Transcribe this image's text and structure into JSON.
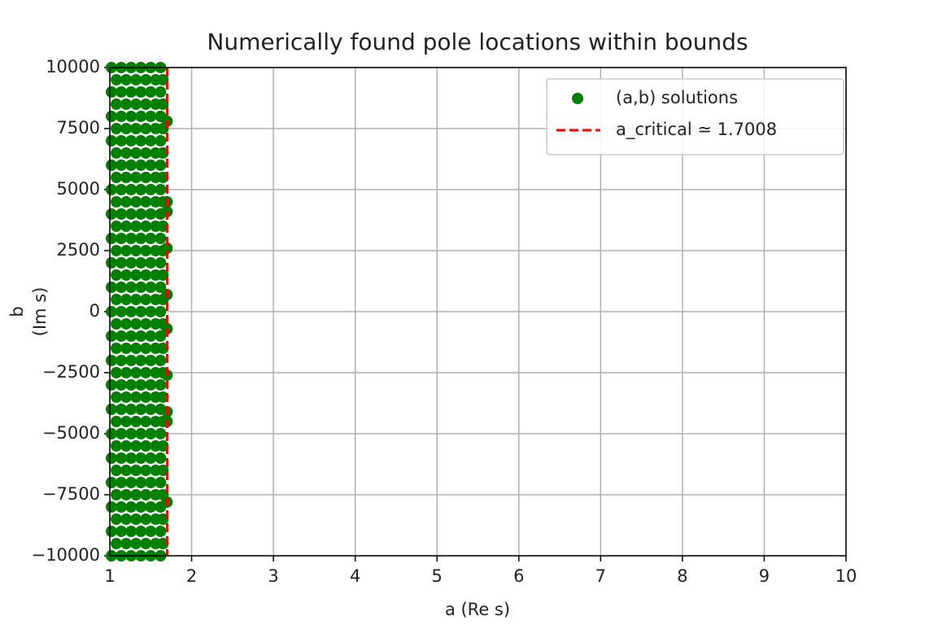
{
  "chart_data": {
    "type": "scatter",
    "title": "Numerically found pole locations within bounds",
    "xlabel": "a (Re s)",
    "ylabel": [
      "b",
      "(Im s)"
    ],
    "xlim": [
      1,
      10
    ],
    "xticks": [
      1,
      2,
      3,
      4,
      5,
      6,
      7,
      8,
      9,
      10
    ],
    "ylim": [
      -10000,
      10000
    ],
    "yticks": [
      {
        "value": -10000,
        "label": "−10000"
      },
      {
        "value": -7500,
        "label": "−7500"
      },
      {
        "value": -5000,
        "label": "−5000"
      },
      {
        "value": -2500,
        "label": "−2500"
      },
      0,
      2500,
      5000,
      7500,
      10000
    ],
    "grid": true,
    "legend": "upper right",
    "series": [
      {
        "name": "(a,b) solutions",
        "color": "#008000",
        "x": [
          1.02,
          1.14,
          1.26,
          1.38,
          1.5,
          1.62,
          1.08,
          1.2,
          1.32,
          1.44,
          1.56,
          1.65,
          1.02,
          1.14,
          1.26,
          1.38,
          1.5,
          1.62,
          1.08,
          1.2,
          1.32,
          1.44,
          1.56,
          1.65,
          1.02,
          1.14,
          1.26,
          1.38,
          1.5,
          1.62,
          1.08,
          1.2,
          1.32,
          1.44,
          1.56,
          1.65,
          1.02,
          1.14,
          1.26,
          1.38,
          1.5,
          1.62,
          1.08,
          1.2,
          1.32,
          1.44,
          1.56,
          1.65,
          1.02,
          1.14,
          1.26,
          1.38,
          1.5,
          1.62,
          1.08,
          1.2,
          1.32,
          1.44,
          1.56,
          1.65,
          1.02,
          1.14,
          1.26,
          1.38,
          1.5,
          1.62,
          1.08,
          1.2,
          1.32,
          1.44,
          1.56,
          1.65,
          1.02,
          1.14,
          1.26,
          1.38,
          1.5,
          1.62,
          1.08,
          1.2,
          1.32,
          1.44,
          1.56,
          1.65,
          1.02,
          1.14,
          1.26,
          1.38,
          1.5,
          1.62,
          1.08,
          1.2,
          1.32,
          1.44,
          1.56,
          1.65,
          1.02,
          1.14,
          1.26,
          1.38,
          1.5,
          1.62,
          1.08,
          1.2,
          1.32,
          1.44,
          1.56,
          1.65,
          1.02,
          1.14,
          1.26,
          1.38,
          1.5,
          1.62,
          1.08,
          1.2,
          1.32,
          1.44,
          1.56,
          1.65,
          1.02,
          1.14,
          1.26,
          1.38,
          1.5,
          1.62,
          1.08,
          1.2,
          1.32,
          1.44,
          1.56,
          1.65,
          1.02,
          1.14,
          1.26,
          1.38,
          1.5,
          1.62,
          1.08,
          1.2,
          1.32,
          1.44,
          1.56,
          1.65,
          1.02,
          1.14,
          1.26,
          1.38,
          1.5,
          1.62,
          1.08,
          1.2,
          1.32,
          1.44,
          1.56,
          1.65,
          1.02,
          1.14,
          1.26,
          1.38,
          1.5,
          1.62,
          1.08,
          1.2,
          1.32,
          1.44,
          1.56,
          1.65,
          1.02,
          1.14,
          1.26,
          1.38,
          1.5,
          1.62,
          1.08,
          1.2,
          1.32,
          1.44,
          1.56,
          1.65,
          1.02,
          1.14,
          1.26,
          1.38,
          1.5,
          1.62,
          1.08,
          1.2,
          1.32,
          1.44,
          1.56,
          1.65,
          1.02,
          1.14,
          1.26,
          1.38,
          1.5,
          1.62,
          1.08,
          1.2,
          1.32,
          1.44,
          1.56,
          1.65,
          1.02,
          1.14,
          1.26,
          1.38,
          1.5,
          1.62,
          1.08,
          1.2,
          1.32,
          1.44,
          1.56,
          1.65,
          1.02,
          1.14,
          1.26,
          1.38,
          1.5,
          1.62,
          1.08,
          1.2,
          1.32,
          1.44,
          1.56,
          1.65,
          1.02,
          1.14,
          1.26,
          1.38,
          1.5,
          1.62,
          1.08,
          1.2,
          1.32,
          1.44,
          1.56,
          1.65,
          1.02,
          1.14,
          1.26,
          1.38,
          1.5,
          1.62,
          1.7,
          1.7,
          1.7,
          1.7,
          1.7,
          1.7,
          1.7,
          1.7,
          1.7,
          1.7
        ],
        "y": [
          -10000,
          -10000,
          -10000,
          -10000,
          -10000,
          -10000,
          -9500,
          -9500,
          -9500,
          -9500,
          -9500,
          -9500,
          -9000,
          -9000,
          -9000,
          -9000,
          -9000,
          -9000,
          -8500,
          -8500,
          -8500,
          -8500,
          -8500,
          -8500,
          -8000,
          -8000,
          -8000,
          -8000,
          -8000,
          -8000,
          -7500,
          -7500,
          -7500,
          -7500,
          -7500,
          -7500,
          -7000,
          -7000,
          -7000,
          -7000,
          -7000,
          -7000,
          -6500,
          -6500,
          -6500,
          -6500,
          -6500,
          -6500,
          -6000,
          -6000,
          -6000,
          -6000,
          -6000,
          -6000,
          -5500,
          -5500,
          -5500,
          -5500,
          -5500,
          -5500,
          -5000,
          -5000,
          -5000,
          -5000,
          -5000,
          -5000,
          -4500,
          -4500,
          -4500,
          -4500,
          -4500,
          -4500,
          -4000,
          -4000,
          -4000,
          -4000,
          -4000,
          -4000,
          -3500,
          -3500,
          -3500,
          -3500,
          -3500,
          -3500,
          -3000,
          -3000,
          -3000,
          -3000,
          -3000,
          -3000,
          -2500,
          -2500,
          -2500,
          -2500,
          -2500,
          -2500,
          -2000,
          -2000,
          -2000,
          -2000,
          -2000,
          -2000,
          -1500,
          -1500,
          -1500,
          -1500,
          -1500,
          -1500,
          -1000,
          -1000,
          -1000,
          -1000,
          -1000,
          -1000,
          -500,
          -500,
          -500,
          -500,
          -500,
          -500,
          0,
          0,
          0,
          0,
          0,
          0,
          500,
          500,
          500,
          500,
          500,
          500,
          1000,
          1000,
          1000,
          1000,
          1000,
          1000,
          1500,
          1500,
          1500,
          1500,
          1500,
          1500,
          2000,
          2000,
          2000,
          2000,
          2000,
          2000,
          2500,
          2500,
          2500,
          2500,
          2500,
          2500,
          3000,
          3000,
          3000,
          3000,
          3000,
          3000,
          3500,
          3500,
          3500,
          3500,
          3500,
          3500,
          4000,
          4000,
          4000,
          4000,
          4000,
          4000,
          4500,
          4500,
          4500,
          4500,
          4500,
          4500,
          5000,
          5000,
          5000,
          5000,
          5000,
          5000,
          5500,
          5500,
          5500,
          5500,
          5500,
          5500,
          6000,
          6000,
          6000,
          6000,
          6000,
          6000,
          6500,
          6500,
          6500,
          6500,
          6500,
          6500,
          7000,
          7000,
          7000,
          7000,
          7000,
          7000,
          7500,
          7500,
          7500,
          7500,
          7500,
          7500,
          8000,
          8000,
          8000,
          8000,
          8000,
          8000,
          8500,
          8500,
          8500,
          8500,
          8500,
          8500,
          9000,
          9000,
          9000,
          9000,
          9000,
          9000,
          9500,
          9500,
          9500,
          9500,
          9500,
          9500,
          10000,
          10000,
          10000,
          10000,
          10000,
          10000,
          7800,
          4500,
          4100,
          2600,
          700,
          -700,
          -2600,
          -4100,
          -4500,
          -7800
        ]
      }
    ],
    "vline": {
      "name": "a_critical ≃ 1.7008",
      "x": 1.7008,
      "color": "#ff0000",
      "dashed": true
    }
  }
}
